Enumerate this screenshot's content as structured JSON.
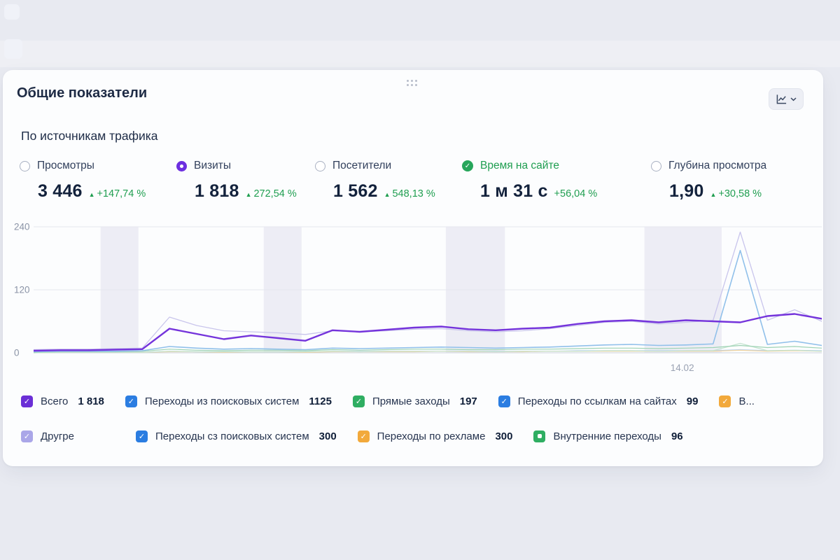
{
  "widget": {
    "title": "Общие показатели",
    "section_title": "По источникам трафика"
  },
  "icons": {
    "drag_handle": "drag-handle-dots",
    "button_icon": "line-chart-icon",
    "button_chevron": "chevron-down-icon"
  },
  "colors": {
    "accent_purple": "#6d2fe0",
    "positive_green": "#1f9e50",
    "legend_blue": "#2b7de1",
    "legend_green": "#2fae62",
    "legend_orange": "#f2a93b",
    "legend_light_purple": "#aaa6e8",
    "card_background": "#fcfdfe",
    "page_background": "#e8eaf1"
  },
  "metrics": [
    {
      "key": "views",
      "label": "Просмотры",
      "value": "3 446",
      "delta": "+147,74 %",
      "arrow": true,
      "control": "radio"
    },
    {
      "key": "visits",
      "label": "Визиты",
      "value": "1 818",
      "delta": "272,54 %",
      "arrow": true,
      "control": "radio-selected"
    },
    {
      "key": "visitors",
      "label": "Посетители",
      "value": "1 562",
      "delta": "548,13 %",
      "arrow": true,
      "control": "radio"
    },
    {
      "key": "time-on-site",
      "label": "Время на сайте",
      "value": "1 м 31 с",
      "delta": "+56,04 %",
      "arrow": false,
      "control": "check-green"
    },
    {
      "key": "view-depth",
      "label": "Глубина просмотра",
      "value": "1,90",
      "delta": "+30,58 %",
      "arrow": true,
      "control": "radio"
    }
  ],
  "legend": {
    "rows": [
      [
        {
          "key": "total",
          "label": "Всего",
          "value": "1 818",
          "color": "#6b2fd6",
          "mark": "check"
        },
        {
          "key": "search-transitions",
          "label": "Переходы из поисковых систем",
          "value": "1125",
          "color": "#2b7de1",
          "mark": "check"
        },
        {
          "key": "direct-visits",
          "label": "Прямые заходы",
          "value": "197",
          "color": "#2fae62",
          "mark": "check"
        },
        {
          "key": "site-link-transitions",
          "label": "Переходы по ссылкам на сайтах",
          "value": "99",
          "color": "#2b7de1",
          "mark": "check"
        },
        {
          "key": "truncated-item",
          "label": "В...",
          "value": "",
          "color": "#f2a93b",
          "mark": "check"
        }
      ],
      [
        {
          "key": "other",
          "label": "Другре",
          "value": "",
          "color": "#aaa6e8",
          "mark": "check"
        },
        {
          "key": "search-transitions-2",
          "label": "Переходы сз поисковых систем",
          "value": "300",
          "color": "#2b7de1",
          "mark": "check"
        },
        {
          "key": "ad-transitions",
          "label": "Переходы по рехламе",
          "value": "300",
          "color": "#f2a93b",
          "mark": "check"
        },
        {
          "key": "internal-transitions",
          "label": "Внутренние переходы",
          "value": "96",
          "color": "#2fae62",
          "mark": "dot"
        }
      ]
    ]
  },
  "chart_data": {
    "type": "line",
    "title": "По источникам трафика",
    "selected_metric": "Визиты",
    "ylim": [
      0,
      240
    ],
    "yticks": [
      0,
      120,
      240
    ],
    "x_tick_label": "14.02",
    "x_tick_fraction": 0.823,
    "grid": true,
    "legend_position": "bottom",
    "weekend_bands": [
      [
        0.085,
        0.133
      ],
      [
        0.292,
        0.34
      ],
      [
        0.523,
        0.598
      ],
      [
        0.775,
        0.873
      ]
    ],
    "series": [
      {
        "name": "Другое",
        "color": "#c9c5ec",
        "width": 1.3,
        "values": [
          6,
          7,
          7,
          8,
          9,
          68,
          52,
          42,
          40,
          38,
          35,
          42,
          40,
          42,
          45,
          46,
          42,
          40,
          42,
          46,
          52,
          58,
          60,
          55,
          58,
          62,
          230,
          62,
          82,
          60
        ]
      },
      {
        "name": "Переходы по ссылкам на сайтах",
        "color": "#b9d2ef",
        "width": 1.2,
        "values": [
          0,
          1,
          1,
          1,
          1,
          3,
          2,
          2,
          2,
          2,
          2,
          3,
          3,
          3,
          3,
          3,
          3,
          3,
          3,
          3,
          4,
          4,
          4,
          4,
          4,
          4,
          6,
          4,
          5,
          4
        ]
      },
      {
        "name": "Переходы по рекламе",
        "color": "#f4d49a",
        "width": 1.2,
        "values": [
          0,
          1,
          1,
          1,
          1,
          2,
          2,
          1,
          2,
          2,
          1,
          2,
          2,
          2,
          2,
          3,
          2,
          2,
          2,
          3,
          3,
          3,
          3,
          3,
          3,
          3,
          5,
          3,
          4,
          3
        ]
      },
      {
        "name": "Внутренние переходы",
        "color": "#c4e4d0",
        "width": 1.2,
        "values": [
          0,
          1,
          1,
          1,
          1,
          3,
          2,
          2,
          2,
          2,
          2,
          3,
          2,
          3,
          3,
          3,
          3,
          2,
          3,
          3,
          3,
          4,
          4,
          3,
          4,
          4,
          18,
          4,
          5,
          3
        ]
      },
      {
        "name": "Прямые заходы",
        "color": "#9ed3b4",
        "width": 1.2,
        "values": [
          1,
          2,
          2,
          2,
          3,
          7,
          5,
          4,
          5,
          5,
          4,
          6,
          5,
          6,
          7,
          7,
          6,
          6,
          7,
          7,
          8,
          9,
          9,
          8,
          9,
          10,
          14,
          10,
          12,
          9
        ]
      },
      {
        "name": "Переходы из поисковых систем",
        "color": "#90c0ea",
        "width": 1.6,
        "values": [
          2,
          3,
          3,
          3,
          4,
          12,
          9,
          7,
          8,
          7,
          6,
          9,
          8,
          9,
          10,
          11,
          10,
          9,
          10,
          11,
          13,
          15,
          16,
          14,
          15,
          17,
          195,
          16,
          22,
          14
        ]
      },
      {
        "name": "Всего",
        "color": "#7433db",
        "width": 2.4,
        "values": [
          4,
          5,
          5,
          6,
          7,
          46,
          36,
          26,
          33,
          28,
          23,
          43,
          40,
          44,
          48,
          50,
          45,
          43,
          46,
          48,
          55,
          60,
          62,
          58,
          62,
          60,
          58,
          70,
          74,
          65
        ]
      }
    ]
  }
}
